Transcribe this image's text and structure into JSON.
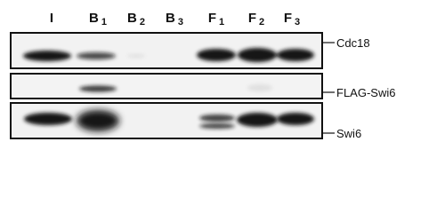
{
  "lanes": [
    {
      "main": "I",
      "sub": null
    },
    {
      "main": "B",
      "sub": "1"
    },
    {
      "main": "B",
      "sub": "2"
    },
    {
      "main": "B",
      "sub": "3"
    },
    {
      "main": "F",
      "sub": "1"
    },
    {
      "main": "F",
      "sub": "2"
    },
    {
      "main": "F",
      "sub": "3"
    }
  ],
  "blots": [
    {
      "label": "Cdc18"
    },
    {
      "label": "FLAG-Swi6"
    },
    {
      "label": "Swi6"
    }
  ]
}
